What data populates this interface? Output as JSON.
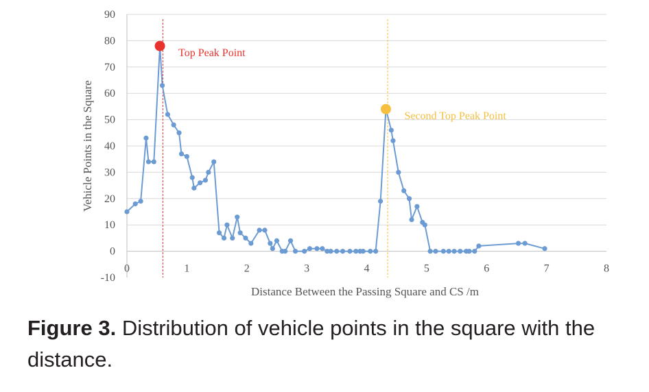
{
  "chart_data": {
    "type": "line",
    "xlabel": "Distance Between the Passing Square and CS /m",
    "ylabel": "Vehicle Points in the Square",
    "xlim": [
      0,
      8
    ],
    "ylim": [
      -10,
      90
    ],
    "xticks": [
      0,
      1,
      2,
      3,
      4,
      5,
      6,
      7,
      8
    ],
    "yticks": [
      -10,
      0,
      10,
      20,
      30,
      40,
      50,
      60,
      70,
      80,
      90
    ],
    "grid": "horizontal",
    "series_color": "#6b9bd2",
    "points": [
      [
        0.0,
        15
      ],
      [
        0.14,
        18
      ],
      [
        0.23,
        19
      ],
      [
        0.32,
        43
      ],
      [
        0.36,
        34
      ],
      [
        0.45,
        34
      ],
      [
        0.55,
        78
      ],
      [
        0.59,
        63
      ],
      [
        0.68,
        52
      ],
      [
        0.78,
        48
      ],
      [
        0.87,
        45
      ],
      [
        0.91,
        37
      ],
      [
        1.0,
        36
      ],
      [
        1.09,
        28
      ],
      [
        1.12,
        24
      ],
      [
        1.22,
        26
      ],
      [
        1.31,
        27
      ],
      [
        1.36,
        30
      ],
      [
        1.45,
        34
      ],
      [
        1.54,
        7
      ],
      [
        1.62,
        5
      ],
      [
        1.67,
        10
      ],
      [
        1.76,
        5
      ],
      [
        1.84,
        13
      ],
      [
        1.89,
        7
      ],
      [
        1.98,
        5
      ],
      [
        2.07,
        3
      ],
      [
        2.21,
        8
      ],
      [
        2.3,
        8
      ],
      [
        2.39,
        3
      ],
      [
        2.43,
        1
      ],
      [
        2.5,
        4
      ],
      [
        2.59,
        0
      ],
      [
        2.64,
        0
      ],
      [
        2.73,
        4
      ],
      [
        2.81,
        0
      ],
      [
        2.96,
        0
      ],
      [
        3.05,
        1
      ],
      [
        3.17,
        1
      ],
      [
        3.26,
        1
      ],
      [
        3.34,
        0
      ],
      [
        3.4,
        0
      ],
      [
        3.5,
        0
      ],
      [
        3.6,
        0
      ],
      [
        3.72,
        0
      ],
      [
        3.82,
        0
      ],
      [
        3.89,
        0
      ],
      [
        3.94,
        0
      ],
      [
        4.06,
        0
      ],
      [
        4.15,
        0
      ],
      [
        4.23,
        19
      ],
      [
        4.32,
        54
      ],
      [
        4.41,
        46
      ],
      [
        4.44,
        42
      ],
      [
        4.53,
        30
      ],
      [
        4.62,
        23
      ],
      [
        4.71,
        20
      ],
      [
        4.75,
        12
      ],
      [
        4.84,
        17
      ],
      [
        4.93,
        11
      ],
      [
        4.97,
        10
      ],
      [
        5.06,
        0
      ],
      [
        5.15,
        0
      ],
      [
        5.28,
        0
      ],
      [
        5.37,
        0
      ],
      [
        5.46,
        0
      ],
      [
        5.56,
        0
      ],
      [
        5.66,
        0
      ],
      [
        5.71,
        0
      ],
      [
        5.8,
        0
      ],
      [
        5.87,
        2
      ],
      [
        6.53,
        3
      ],
      [
        6.64,
        3
      ],
      [
        6.97,
        1
      ]
    ],
    "peaks": [
      {
        "label": "Top Peak Point",
        "x": 0.55,
        "y": 78,
        "color": "#e8322d",
        "vline_x": 0.6
      },
      {
        "label": "Second Top Peak Point",
        "x": 4.32,
        "y": 54,
        "color": "#f5c040",
        "vline_x": 4.35
      }
    ]
  },
  "caption": {
    "label": "Figure 3.",
    "text": " Distribution of vehicle points in the square with the distance."
  }
}
